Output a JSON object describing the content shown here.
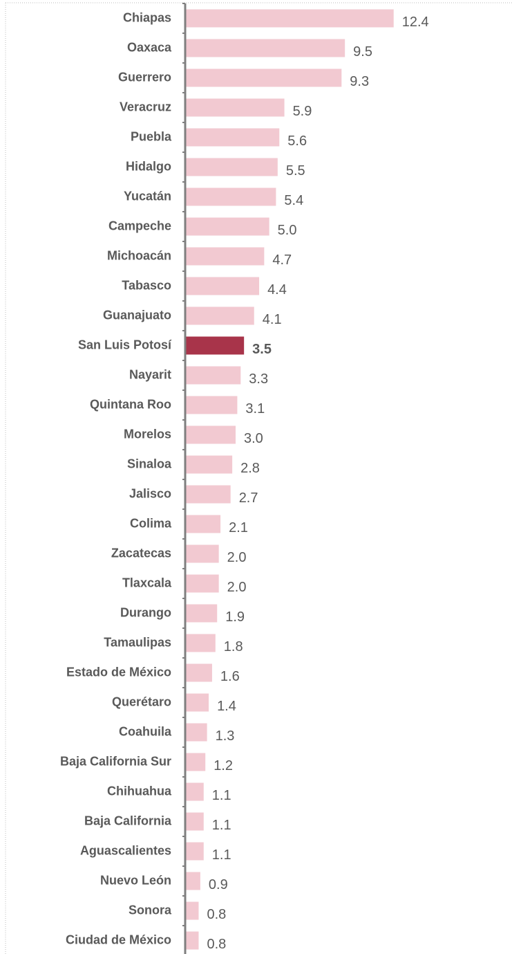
{
  "chart_data": {
    "type": "barh",
    "categories": [
      "Chiapas",
      "Oaxaca",
      "Guerrero",
      "Veracruz",
      "Puebla",
      "Hidalgo",
      "Yucatán",
      "Campeche",
      "Michoacán",
      "Tabasco",
      "Guanajuato",
      "San Luis Potosí",
      "Nayarit",
      "Quintana Roo",
      "Morelos",
      "Sinaloa",
      "Jalisco",
      "Colima",
      "Zacatecas",
      "Tlaxcala",
      "Durango",
      "Tamaulipas",
      "Estado de México",
      "Querétaro",
      "Coahuila",
      "Baja California Sur",
      "Chihuahua",
      "Baja California",
      "Aguascalientes",
      "Nuevo León",
      "Sonora",
      "Ciudad de México"
    ],
    "values": [
      12.4,
      9.5,
      9.3,
      5.9,
      5.6,
      5.5,
      5.4,
      5.0,
      4.7,
      4.4,
      4.1,
      3.5,
      3.3,
      3.1,
      3.0,
      2.8,
      2.7,
      2.1,
      2.0,
      2.0,
      1.9,
      1.8,
      1.6,
      1.4,
      1.3,
      1.2,
      1.1,
      1.1,
      1.1,
      0.9,
      0.8,
      0.8
    ],
    "value_labels": [
      "12.4",
      "9.5",
      "9.3",
      "5.9",
      "5.6",
      "5.5",
      "5.4",
      "5.0",
      "4.7",
      "4.4",
      "4.1",
      "3.5",
      "3.3",
      "3.1",
      "3.0",
      "2.8",
      "2.7",
      "2.1",
      "2.0",
      "2.0",
      "1.9",
      "1.8",
      "1.6",
      "1.4",
      "1.3",
      "1.2",
      "1.1",
      "1.1",
      "1.1",
      "0.9",
      "0.8",
      "0.8"
    ],
    "colors": [
      "#f2c9d1",
      "#f2c9d1",
      "#f2c9d1",
      "#f2c9d1",
      "#f2c9d1",
      "#f2c9d1",
      "#f2c9d1",
      "#f2c9d1",
      "#f2c9d1",
      "#f2c9d1",
      "#f2c9d1",
      "#a8344a",
      "#f2c9d1",
      "#f2c9d1",
      "#f2c9d1",
      "#f2c9d1",
      "#f2c9d1",
      "#f2c9d1",
      "#f2c9d1",
      "#f2c9d1",
      "#f2c9d1",
      "#f2c9d1",
      "#f2c9d1",
      "#f2c9d1",
      "#f2c9d1",
      "#f2c9d1",
      "#f2c9d1",
      "#f2c9d1",
      "#f2c9d1",
      "#f2c9d1",
      "#f2c9d1",
      "#f2c9d1"
    ],
    "xlim": [
      0,
      15
    ]
  }
}
